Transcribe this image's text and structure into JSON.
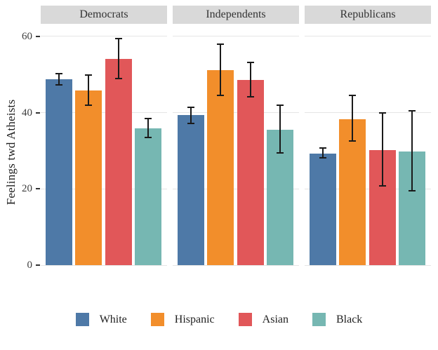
{
  "figure": {
    "background": "#ffffff"
  },
  "chart_data": {
    "type": "bar",
    "title": "",
    "xlabel": "",
    "ylabel": "Feelings twd Atheists",
    "facet_titles": [
      "Democrats",
      "Independents",
      "Republicans"
    ],
    "categories": [
      "Democrats",
      "Independents",
      "Republicans"
    ],
    "series": [
      {
        "name": "White",
        "color": "#4E79A7",
        "values": [
          48.7,
          39.3,
          29.3
        ],
        "ci_low": [
          47.3,
          37.2,
          28.1
        ],
        "ci_high": [
          50.2,
          41.4,
          30.7
        ]
      },
      {
        "name": "Hispanic",
        "color": "#F28E2B",
        "values": [
          45.9,
          51.1,
          38.3
        ],
        "ci_low": [
          42.0,
          44.6,
          32.6
        ],
        "ci_high": [
          49.8,
          58.0,
          44.6
        ]
      },
      {
        "name": "Asian",
        "color": "#E15759",
        "values": [
          54.1,
          48.5,
          30.2
        ],
        "ci_low": [
          48.9,
          44.1,
          20.8
        ],
        "ci_high": [
          59.4,
          53.1,
          40.0
        ]
      },
      {
        "name": "Black",
        "color": "#76B7B2",
        "values": [
          35.9,
          35.6,
          29.8
        ],
        "ci_low": [
          33.5,
          29.4,
          19.5
        ],
        "ci_high": [
          38.5,
          41.9,
          40.4
        ]
      }
    ],
    "yticks": [
      0,
      20,
      40,
      60
    ],
    "ylim": [
      0,
      63.3
    ],
    "grid": "major-y-only",
    "legend_position": "bottom",
    "error_bars": true
  },
  "style": {
    "strip_background": "#d9d9d9",
    "strip_text_color": "#333333",
    "gridline_color": "#e5e5e5",
    "axis_text_color": "#3d3d3d",
    "error_bar_color": "#1a1a1a",
    "panel_background": "#ffffff"
  }
}
